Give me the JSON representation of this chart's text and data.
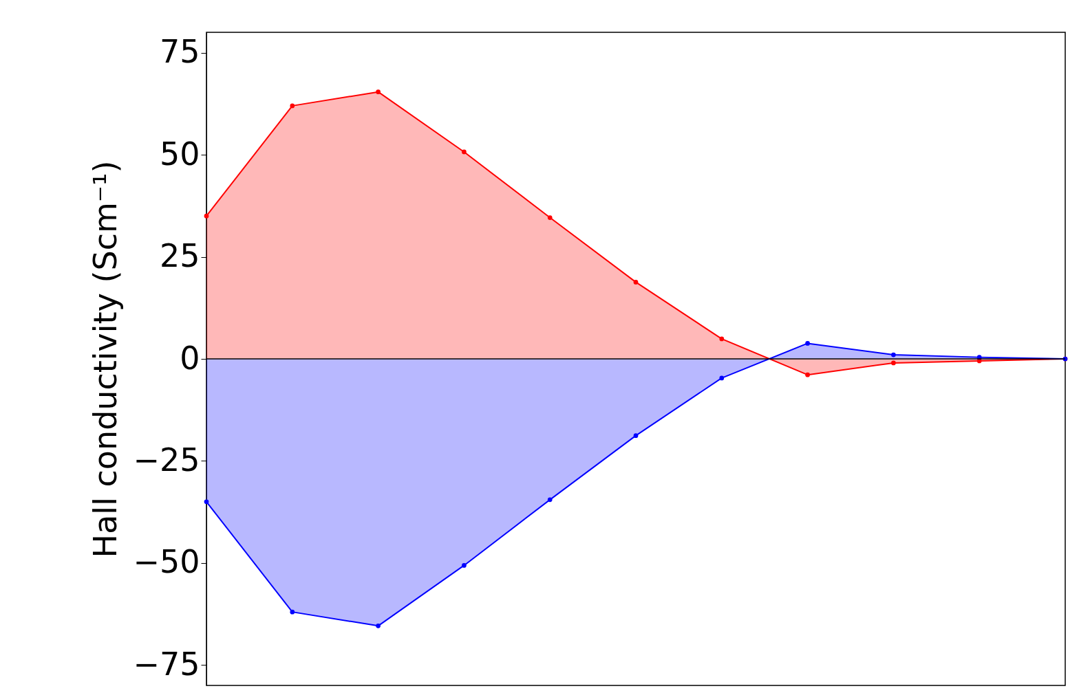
{
  "chart_data": {
    "type": "area",
    "ylabel": "Hall conductivity (Scm⁻¹)",
    "categories": [
      null,
      null,
      null,
      null,
      null,
      null,
      null,
      null,
      null,
      null,
      null
    ],
    "series": [
      {
        "color": "#ff0000",
        "values": [
          35,
          62,
          65.4,
          50.7,
          34.6,
          18.8,
          4.9,
          -3.9,
          -1,
          -0.5,
          0
        ]
      },
      {
        "color": "#0000ff",
        "values": [
          -35,
          -62,
          -65.4,
          -50.6,
          -34.5,
          -18.8,
          -4.7,
          3.8,
          1,
          0.4,
          0
        ]
      }
    ],
    "ylim": [
      -80,
      80
    ],
    "yticks": [
      -75,
      -50,
      -25,
      0,
      25,
      50,
      75
    ],
    "ref_lines": [
      {
        "axis": "y",
        "value": 0,
        "color": "#000000"
      }
    ],
    "marker": "circle",
    "line_style": "solid",
    "tick_labels": "y"
  }
}
